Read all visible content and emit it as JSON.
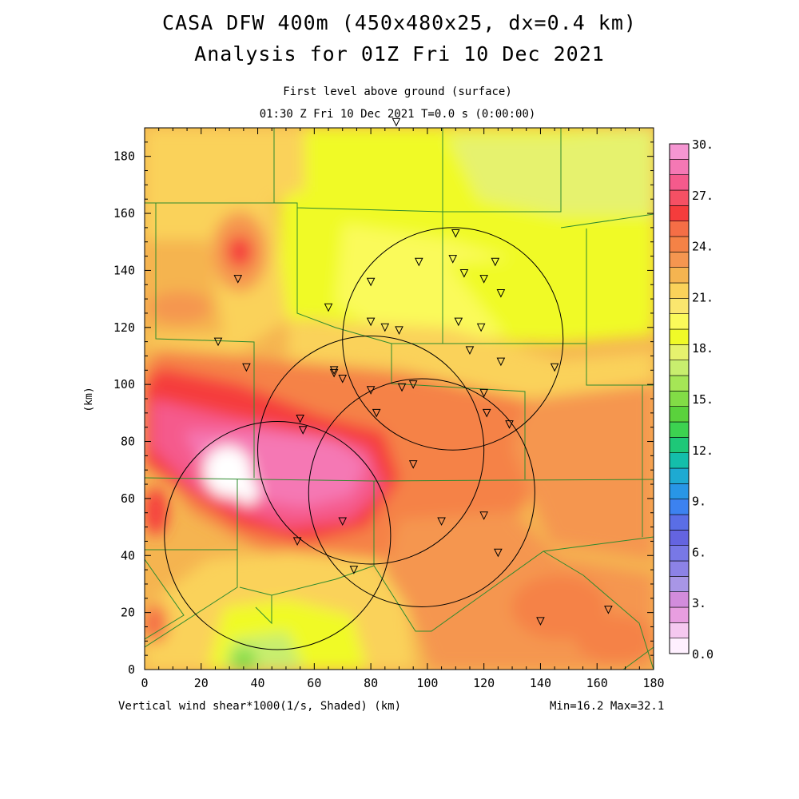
{
  "title": "CASA DFW 400m (450x480x25, dx=0.4 km)",
  "subtitle": "Analysis for 01Z Fri 10 Dec 2021",
  "level_text": "First level above ground (surface)",
  "time_text": "01:30 Z Fri 10 Dec 2021    T=0.0 s (0:00:00)",
  "field_label": "Vertical wind shear*1000(1/s, Shaded)  (km)",
  "minmax_text": "Min=16.2 Max=32.1",
  "chart_data": {
    "type": "heatmap",
    "xlabel": "",
    "ylabel": "(km)",
    "xlim": [
      0,
      180
    ],
    "ylim": [
      0,
      190
    ],
    "x_ticks": [
      "0",
      "20",
      "40",
      "60",
      "80",
      "100",
      "120",
      "140",
      "160",
      "180"
    ],
    "y_ticks": [
      "0",
      "20",
      "40",
      "60",
      "80",
      "100",
      "120",
      "140",
      "160",
      "180"
    ],
    "colorbar": {
      "labels": [
        "30.",
        "27.",
        "24.",
        "21.",
        "18.",
        "15.",
        "12.",
        "9.",
        "6.",
        "3.",
        "0.0"
      ],
      "colors": [
        "#fff0ff",
        "#f5c8f0",
        "#e89ee0",
        "#d28cdc",
        "#a896e6",
        "#8c82e6",
        "#7878e6",
        "#6464e0",
        "#5a6ee6",
        "#3c82f0",
        "#2896e6",
        "#1eaad2",
        "#14beaa",
        "#1ec878",
        "#3cd250",
        "#5ad23c",
        "#82dc46",
        "#a5e656",
        "#c8ee6e",
        "#e6f26e",
        "#f0fa28",
        "#fafa5a",
        "#fae66e",
        "#fad25a",
        "#f5b450",
        "#f59650",
        "#f58246",
        "#f56e46",
        "#f53c3c",
        "#f55064",
        "#f55a8c",
        "#f578b4",
        "#f596d2"
      ],
      "min": 0,
      "max": 30
    },
    "field_stats": {
      "min": 16.2,
      "max": 32.1
    },
    "radars": [
      {
        "x": 47,
        "y": 47,
        "r": 40
      },
      {
        "x": 80,
        "y": 77,
        "r": 40
      },
      {
        "x": 98,
        "y": 62,
        "r": 40
      },
      {
        "x": 109,
        "y": 116,
        "r": 39
      }
    ],
    "stations": [
      [
        89,
        192
      ],
      [
        110,
        153
      ],
      [
        97,
        143
      ],
      [
        109,
        144
      ],
      [
        113,
        139
      ],
      [
        124,
        143
      ],
      [
        120,
        137
      ],
      [
        126,
        132
      ],
      [
        80,
        136
      ],
      [
        33,
        137
      ],
      [
        65,
        127
      ],
      [
        80,
        122
      ],
      [
        85,
        120
      ],
      [
        90,
        119
      ],
      [
        111,
        122
      ],
      [
        119,
        120
      ],
      [
        26,
        115
      ],
      [
        115,
        112
      ],
      [
        126,
        108
      ],
      [
        145,
        106
      ],
      [
        36,
        106
      ],
      [
        67,
        105
      ],
      [
        67,
        104
      ],
      [
        70,
        102
      ],
      [
        80,
        98
      ],
      [
        91,
        99
      ],
      [
        95,
        100
      ],
      [
        120,
        97
      ],
      [
        121,
        90
      ],
      [
        129,
        86
      ],
      [
        82,
        90
      ],
      [
        55,
        88
      ],
      [
        56,
        84
      ],
      [
        95,
        72
      ],
      [
        70,
        52
      ],
      [
        105,
        52
      ],
      [
        120,
        54
      ],
      [
        54,
        45
      ],
      [
        125,
        41
      ],
      [
        74,
        35
      ],
      [
        140,
        17
      ],
      [
        164,
        21
      ]
    ]
  }
}
